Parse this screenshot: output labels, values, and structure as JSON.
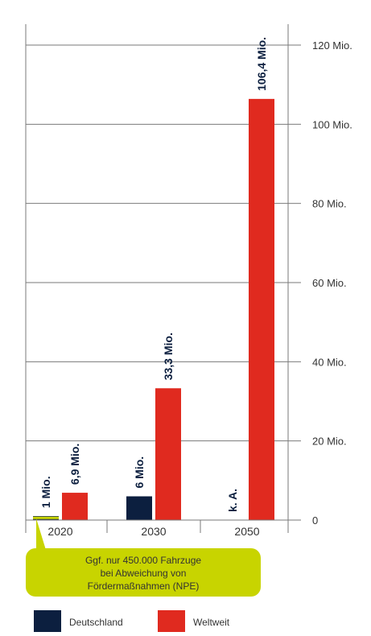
{
  "chart_data": {
    "type": "bar",
    "categories": [
      "2020",
      "2030",
      "2050"
    ],
    "series": [
      {
        "name": "Deutschland",
        "color": "#0c1f3f",
        "values": [
          1,
          6,
          null
        ],
        "labels": [
          "1 Mio.",
          "6 Mio.",
          "k. A."
        ]
      },
      {
        "name": "Weltweit",
        "color": "#e02a1f",
        "values": [
          6.9,
          33.3,
          106.4
        ],
        "labels": [
          "6,9 Mio.",
          "33,3 Mio.",
          "106,4 Mio."
        ]
      }
    ],
    "ylim": [
      0,
      120
    ],
    "yticks": [
      0,
      20,
      40,
      60,
      80,
      100,
      120
    ],
    "ytick_labels": [
      "0",
      "20 Mio.",
      "40 Mio.",
      "60 Mio.",
      "80 Mio.",
      "100 Mio.",
      "120 Mio."
    ],
    "y_axis_position": "right",
    "grid": true,
    "legend_position": "bottom-left",
    "annotation": {
      "lines": [
        "Ggf. nur 450.000 Fahrzuge",
        "bei Abweichung von",
        "Fördermaßnahmen (NPE)"
      ],
      "color": "#c8d400",
      "target": "2020 Deutschland",
      "target_value": 0.45
    }
  }
}
